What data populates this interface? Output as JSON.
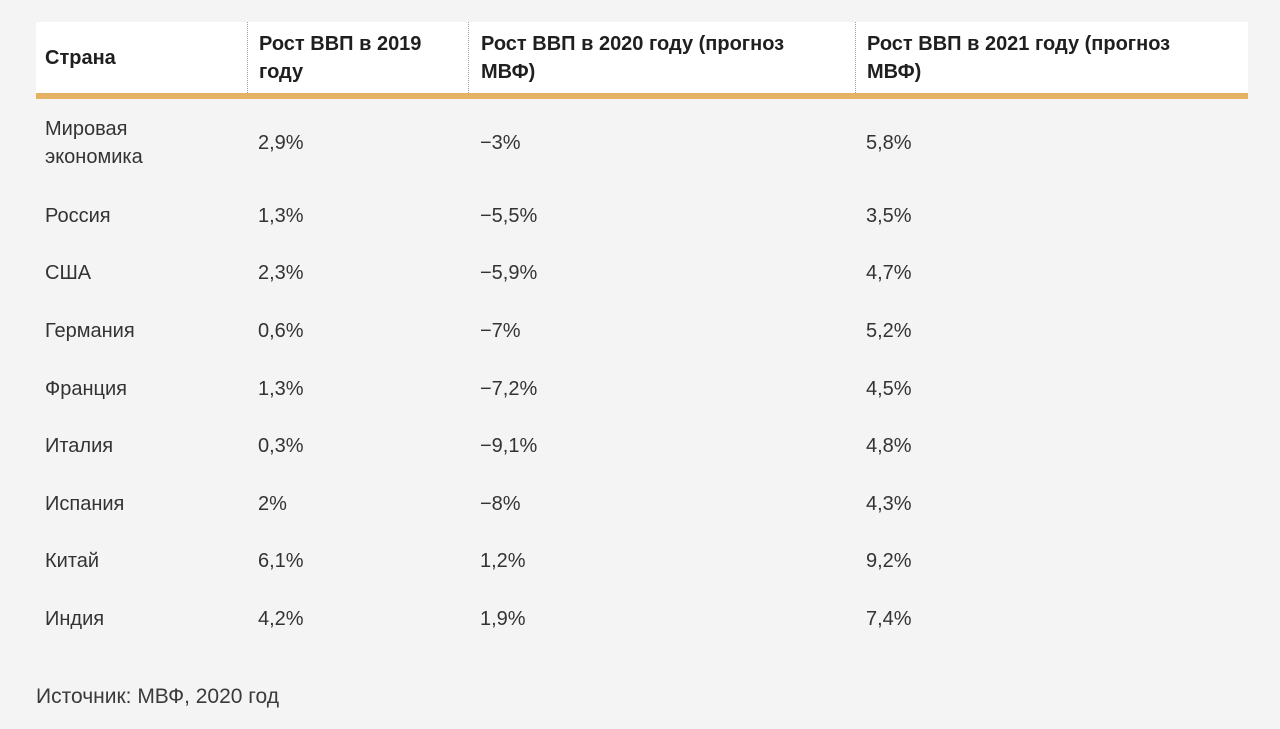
{
  "chart_data": {
    "type": "table",
    "title": "",
    "columns": [
      "Страна",
      "Рост ВВП в 2019 году",
      "Рост ВВП в 2020 году (прогноз МВФ)",
      "Рост ВВП в 2021 году (прогноз МВФ)"
    ],
    "rows": [
      [
        "Мировая экономика",
        "2,9%",
        "−3%",
        "5,8%"
      ],
      [
        "Россия",
        "1,3%",
        "−5,5%",
        "3,5%"
      ],
      [
        "США",
        "2,3%",
        "−5,9%",
        "4,7%"
      ],
      [
        "Германия",
        "0,6%",
        "−7%",
        "5,2%"
      ],
      [
        "Франция",
        "1,3%",
        "−7,2%",
        "4,5%"
      ],
      [
        "Италия",
        "0,3%",
        "−9,1%",
        "4,8%"
      ],
      [
        "Испания",
        "2%",
        "−8%",
        "4,3%"
      ],
      [
        "Китай",
        "6,1%",
        "1,2%",
        "9,2%"
      ],
      [
        "Индия",
        "4,2%",
        "1,9%",
        "7,4%"
      ]
    ],
    "source": "Источник: МВФ, 2020 год",
    "layout_hints": {
      "header_background": "#ffffff",
      "grid": "off",
      "header_separators": "dotted-vertical"
    }
  },
  "colors": {
    "accent_bar": "#e4b263",
    "page_background": "#f4f4f5",
    "header_text": "#1f1f1f",
    "body_text": "#333333"
  }
}
